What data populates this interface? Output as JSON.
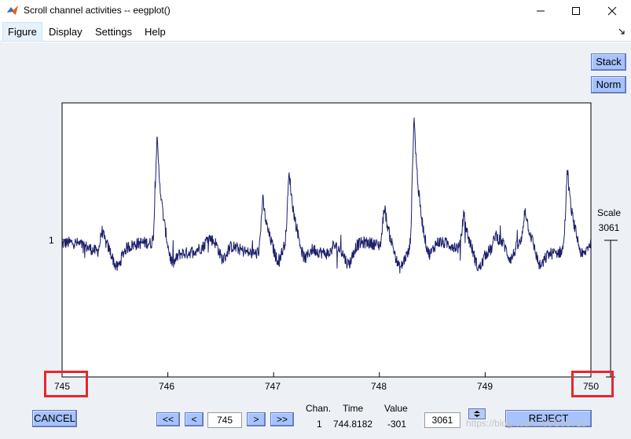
{
  "window": {
    "title": "Scroll channel activities -- eegplot()",
    "app_icon": "matlab-icon"
  },
  "menubar": {
    "items": [
      "Figure",
      "Display",
      "Settings",
      "Help"
    ],
    "active": "Figure"
  },
  "side_buttons": {
    "stack_label": "Stack",
    "norm_label": "Norm"
  },
  "scale": {
    "label": "Scale",
    "value": "3061"
  },
  "axis": {
    "y_tick_label": "1"
  },
  "chart_data": {
    "type": "line",
    "series": [
      {
        "x_start": 745,
        "x_end": 750,
        "peak_times": [
          745.38,
          745.9,
          746.38,
          746.9,
          747.15,
          747.57,
          748.05,
          748.33,
          748.8,
          749.1,
          749.38,
          749.78
        ],
        "peak_heights": [
          0.55,
          0.85,
          0.5,
          0.66,
          0.72,
          0.5,
          0.62,
          0.95,
          0.6,
          0.52,
          0.6,
          0.75
        ],
        "baseline": 0.47
      }
    ],
    "xlim": [
      745,
      750
    ],
    "x_ticks": [
      745,
      746,
      747,
      748,
      749,
      750
    ],
    "y_ticks": [
      "1"
    ],
    "line_color": "#1b1f6b",
    "grid": false
  },
  "navigation": {
    "cancel_label": "CANCEL",
    "prev_fast_label": "<<",
    "prev_label": "<",
    "position_value": "745",
    "next_label": ">",
    "next_fast_label": ">>"
  },
  "cursor_info": {
    "chan_label": "Chan.",
    "time_label": "Time",
    "value_label": "Value",
    "chan_value": "1",
    "time_value": "744.8182",
    "amp_value": "-301"
  },
  "scale_controls": {
    "scale_input_value": "3061"
  },
  "reject_label": "REJECT",
  "watermark": "https://blog.csdn.net/G96718",
  "colors": {
    "button_fill": "#a6c2ff",
    "figure_bg": "#edf1f6",
    "highlight_red": "#e8262d"
  }
}
